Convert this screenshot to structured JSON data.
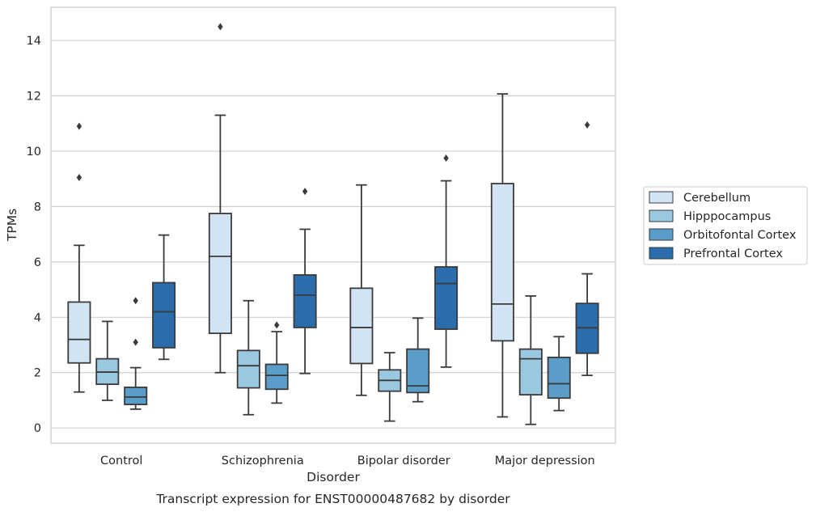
{
  "chart_data": {
    "type": "box",
    "caption": "Transcript expression for ENST00000487682 by disorder",
    "xlabel": "Disorder",
    "ylabel": "TPMs",
    "categories": [
      "Control",
      "Schizophrenia",
      "Bipolar disorder",
      "Major depression"
    ],
    "ylim": [
      -0.55,
      15.2
    ],
    "yticks": [
      0,
      2,
      4,
      6,
      8,
      10,
      12,
      14
    ],
    "grid": "horizontal",
    "legend_position": "right",
    "series": [
      {
        "name": "Cerebellum",
        "color": "#d2e3f3",
        "boxes": [
          {
            "whislo": 1.3,
            "q1": 2.35,
            "med": 3.2,
            "q3": 4.55,
            "whishi": 6.6,
            "fliers": [
              9.05,
              10.9
            ]
          },
          {
            "whislo": 2.0,
            "q1": 3.42,
            "med": 6.2,
            "q3": 7.75,
            "whishi": 11.3,
            "fliers": [
              14.5
            ]
          },
          {
            "whislo": 1.18,
            "q1": 2.33,
            "med": 3.63,
            "q3": 5.05,
            "whishi": 8.78,
            "fliers": []
          },
          {
            "whislo": 0.4,
            "q1": 3.15,
            "med": 4.48,
            "q3": 8.83,
            "whishi": 12.07,
            "fliers": []
          }
        ]
      },
      {
        "name": "Hipppocampus",
        "color": "#9ac8e0",
        "boxes": [
          {
            "whislo": 1.0,
            "q1": 1.58,
            "med": 2.02,
            "q3": 2.5,
            "whishi": 3.85,
            "fliers": []
          },
          {
            "whislo": 0.48,
            "q1": 1.45,
            "med": 2.25,
            "q3": 2.8,
            "whishi": 4.6,
            "fliers": []
          },
          {
            "whislo": 0.25,
            "q1": 1.33,
            "med": 1.72,
            "q3": 2.1,
            "whishi": 2.72,
            "fliers": []
          },
          {
            "whislo": 0.13,
            "q1": 1.2,
            "med": 2.5,
            "q3": 2.85,
            "whishi": 4.77,
            "fliers": []
          }
        ]
      },
      {
        "name": "Orbitofontal Cortex",
        "color": "#5a9dc9",
        "boxes": [
          {
            "whislo": 0.68,
            "q1": 0.85,
            "med": 1.12,
            "q3": 1.47,
            "whishi": 2.18,
            "fliers": [
              3.1,
              4.6
            ]
          },
          {
            "whislo": 0.9,
            "q1": 1.4,
            "med": 1.9,
            "q3": 2.3,
            "whishi": 3.48,
            "fliers": [
              3.72
            ]
          },
          {
            "whislo": 0.95,
            "q1": 1.28,
            "med": 1.52,
            "q3": 2.85,
            "whishi": 3.97,
            "fliers": []
          },
          {
            "whislo": 0.63,
            "q1": 1.08,
            "med": 1.6,
            "q3": 2.55,
            "whishi": 3.3,
            "fliers": []
          }
        ]
      },
      {
        "name": "Prefrontal Cortex",
        "color": "#2a6cac",
        "boxes": [
          {
            "whislo": 2.48,
            "q1": 2.9,
            "med": 4.2,
            "q3": 5.25,
            "whishi": 6.97,
            "fliers": []
          },
          {
            "whislo": 1.97,
            "q1": 3.63,
            "med": 4.8,
            "q3": 5.53,
            "whishi": 7.18,
            "fliers": [
              8.55
            ]
          },
          {
            "whislo": 2.2,
            "q1": 3.57,
            "med": 5.22,
            "q3": 5.82,
            "whishi": 8.93,
            "fliers": [
              9.75
            ]
          },
          {
            "whislo": 1.9,
            "q1": 2.7,
            "med": 3.62,
            "q3": 4.5,
            "whishi": 5.57,
            "fliers": [
              10.95
            ]
          }
        ]
      }
    ]
  }
}
